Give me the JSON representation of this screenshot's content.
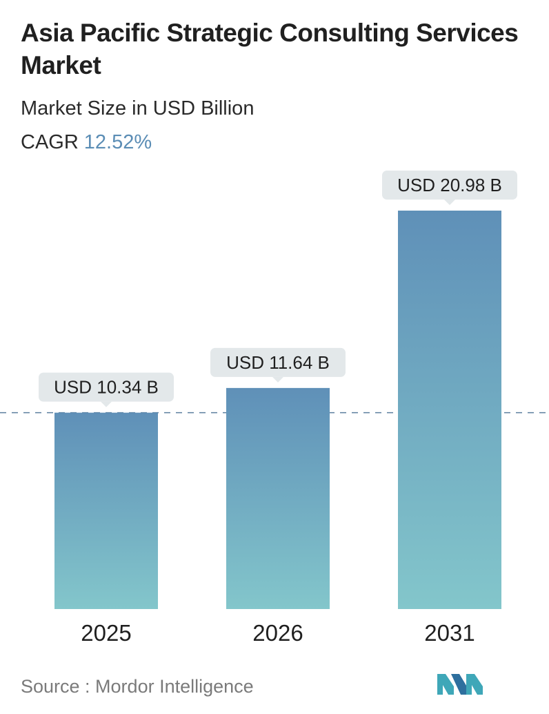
{
  "header": {
    "title": "Asia Pacific Strategic Consulting Services Market",
    "subtitle": "Market Size in USD Billion",
    "cagr_label": "CAGR",
    "cagr_value": "12.52%"
  },
  "footer": {
    "source": "Source :  Mordor Intelligence"
  },
  "colors": {
    "bar_top": "#5f90b8",
    "bar_bottom": "#83c6cb",
    "label_bg": "#e3e8ea",
    "dashed_line": "#5b7f9e",
    "cagr_accent": "#5b8db5"
  },
  "chart_data": {
    "type": "bar",
    "categories": [
      "2025",
      "2026",
      "2031"
    ],
    "values": [
      10.34,
      11.64,
      20.98
    ],
    "data_labels": [
      "USD 10.34 B",
      "USD 11.64 B",
      "USD 20.98 B"
    ],
    "reference_line": 10.34,
    "grid": false,
    "legend": "none"
  }
}
